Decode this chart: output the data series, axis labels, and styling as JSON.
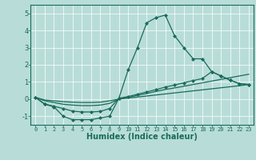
{
  "xlabel": "Humidex (Indice chaleur)",
  "xlim": [
    -0.5,
    23.5
  ],
  "ylim": [
    -1.5,
    5.5
  ],
  "yticks": [
    -1,
    0,
    1,
    2,
    3,
    4,
    5
  ],
  "xticks": [
    0,
    1,
    2,
    3,
    4,
    5,
    6,
    7,
    8,
    9,
    10,
    11,
    12,
    13,
    14,
    15,
    16,
    17,
    18,
    19,
    20,
    21,
    22,
    23
  ],
  "bg_color": "#b8ddd8",
  "line_color": "#1a6b5a",
  "grid_color": "#ffffff",
  "line1_x": [
    0,
    1,
    2,
    3,
    4,
    5,
    6,
    7,
    8,
    9,
    10,
    11,
    12,
    13,
    14,
    15,
    16,
    17,
    18,
    19,
    20,
    21,
    22,
    23
  ],
  "line1_y": [
    0.1,
    -0.3,
    -0.45,
    -1.0,
    -1.2,
    -1.2,
    -1.2,
    -1.1,
    -1.0,
    0.05,
    1.7,
    3.0,
    4.45,
    4.75,
    4.9,
    3.7,
    3.0,
    2.35,
    2.35,
    1.6,
    1.35,
    1.1,
    0.9,
    0.85
  ],
  "line2_x": [
    0,
    1,
    2,
    3,
    4,
    5,
    6,
    7,
    8,
    9,
    10,
    11,
    12,
    13,
    14,
    15,
    16,
    17,
    18,
    19,
    20,
    21,
    22,
    23
  ],
  "line2_y": [
    0.1,
    -0.28,
    -0.42,
    -0.55,
    -0.7,
    -0.75,
    -0.75,
    -0.72,
    -0.55,
    0.05,
    0.15,
    0.28,
    0.42,
    0.55,
    0.7,
    0.82,
    0.95,
    1.08,
    1.2,
    1.6,
    1.35,
    1.1,
    0.9,
    0.85
  ],
  "line3_x": [
    0,
    1,
    2,
    3,
    4,
    5,
    6,
    7,
    8,
    9,
    10,
    11,
    12,
    13,
    14,
    15,
    16,
    17,
    18,
    19,
    20,
    21,
    22,
    23
  ],
  "line3_y": [
    0.1,
    -0.1,
    -0.2,
    -0.3,
    -0.35,
    -0.38,
    -0.38,
    -0.35,
    -0.25,
    0.0,
    0.1,
    0.22,
    0.33,
    0.45,
    0.56,
    0.65,
    0.75,
    0.85,
    0.95,
    1.05,
    1.15,
    1.25,
    1.35,
    1.45
  ],
  "line4_x": [
    0,
    1,
    2,
    3,
    4,
    5,
    6,
    7,
    8,
    9,
    10,
    11,
    12,
    13,
    14,
    15,
    16,
    17,
    18,
    19,
    20,
    21,
    22,
    23
  ],
  "line4_y": [
    0.1,
    -0.05,
    -0.1,
    -0.15,
    -0.18,
    -0.2,
    -0.2,
    -0.18,
    -0.1,
    0.0,
    0.06,
    0.12,
    0.18,
    0.24,
    0.3,
    0.36,
    0.42,
    0.48,
    0.54,
    0.6,
    0.66,
    0.72,
    0.78,
    0.85
  ]
}
